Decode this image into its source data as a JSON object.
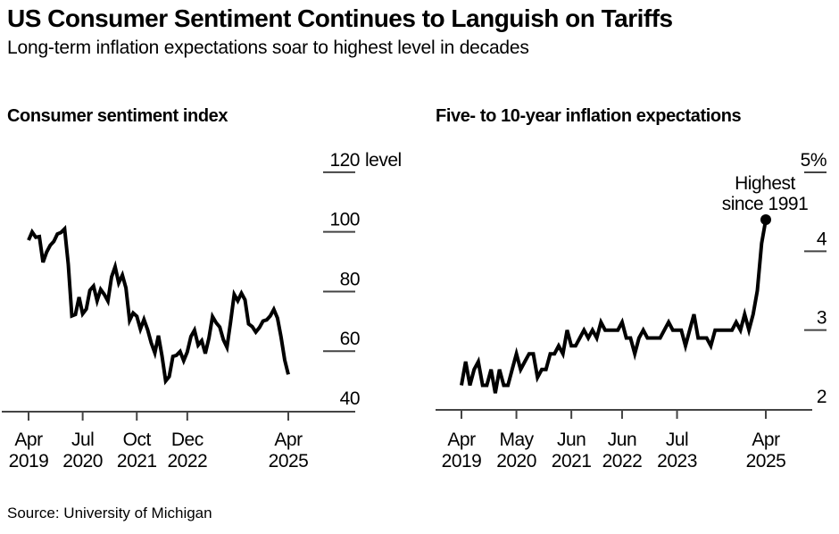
{
  "header": {
    "title": "US Consumer Sentiment Continues to Languish on Tariffs",
    "subtitle": "Long-term inflation expectations soar to highest level in decades"
  },
  "source": {
    "label": "Source: University of Michigan"
  },
  "colors": {
    "line": "#000000",
    "axis": "#444444",
    "text": "#000000",
    "background": "#ffffff"
  },
  "chart_data": [
    {
      "type": "line",
      "title": "Consumer sentiment index",
      "unit_label": "level",
      "frequency": "monthly",
      "x_start": "Apr 2019",
      "x_end": "Apr 2025",
      "x_tick_labels": [
        [
          "Apr",
          "2019"
        ],
        [
          "Jul",
          "2020"
        ],
        [
          "Oct",
          "2021"
        ],
        [
          "Dec",
          "2022"
        ],
        [
          "Apr",
          "2025"
        ]
      ],
      "x_tick_month_index": [
        0,
        15,
        30,
        44,
        72
      ],
      "y_tick_labels": [
        "120",
        "100",
        "80",
        "60",
        "40"
      ],
      "y_tick_values": [
        120,
        100,
        80,
        60,
        40
      ],
      "ylim": [
        40,
        122
      ],
      "values": [
        97.2,
        100.0,
        98.2,
        98.4,
        89.8,
        93.2,
        95.5,
        96.8,
        99.3,
        99.8,
        101.0,
        89.1,
        71.8,
        72.3,
        78.1,
        72.5,
        74.1,
        80.4,
        81.8,
        76.9,
        80.7,
        79.0,
        76.8,
        84.9,
        88.3,
        82.9,
        85.5,
        81.2,
        70.3,
        72.8,
        71.7,
        67.4,
        70.6,
        67.2,
        62.8,
        59.4,
        65.2,
        58.4,
        50.0,
        51.5,
        58.2,
        58.6,
        59.9,
        56.8,
        59.7,
        64.9,
        67.0,
        62.0,
        63.5,
        59.2,
        64.4,
        71.6,
        69.5,
        68.1,
        63.8,
        61.3,
        69.7,
        79.0,
        76.9,
        79.4,
        77.2,
        69.1,
        68.2,
        66.4,
        67.9,
        70.1,
        70.5,
        71.8,
        74.0,
        71.1,
        64.7,
        57.0,
        52.2
      ]
    },
    {
      "type": "line",
      "title": "Five- to 10-year inflation expectations",
      "frequency": "monthly",
      "x_start": "Apr 2019",
      "x_end": "Apr 2025",
      "x_tick_labels": [
        [
          "Apr",
          "2019"
        ],
        [
          "May",
          "2020"
        ],
        [
          "Jun",
          "2021"
        ],
        [
          "Jun",
          "2022"
        ],
        [
          "Jul",
          "2023"
        ],
        [
          "Apr",
          "2025"
        ]
      ],
      "x_tick_month_index": [
        0,
        13,
        26,
        38,
        51,
        72
      ],
      "y_tick_labels": [
        "5%",
        "4",
        "3",
        "2"
      ],
      "y_tick_values": [
        5,
        4,
        3,
        2
      ],
      "ylim": [
        2,
        5
      ],
      "annotation": {
        "line1": "Highest",
        "line2": "since 1991"
      },
      "end_marker": true,
      "values": [
        2.3,
        2.6,
        2.3,
        2.5,
        2.6,
        2.3,
        2.3,
        2.5,
        2.2,
        2.5,
        2.3,
        2.3,
        2.5,
        2.7,
        2.5,
        2.6,
        2.7,
        2.7,
        2.4,
        2.5,
        2.5,
        2.7,
        2.7,
        2.8,
        2.7,
        3.0,
        2.8,
        2.8,
        2.9,
        3.0,
        2.9,
        3.0,
        2.9,
        3.1,
        3.0,
        3.0,
        3.0,
        3.0,
        3.1,
        2.9,
        2.9,
        2.7,
        2.9,
        3.0,
        2.9,
        2.9,
        2.9,
        2.9,
        3.0,
        3.1,
        3.0,
        3.0,
        3.0,
        2.8,
        3.0,
        3.2,
        2.9,
        2.9,
        2.9,
        2.8,
        3.0,
        3.0,
        3.0,
        3.0,
        3.0,
        3.1,
        3.0,
        3.2,
        3.0,
        3.2,
        3.5,
        4.1,
        4.4
      ]
    }
  ]
}
